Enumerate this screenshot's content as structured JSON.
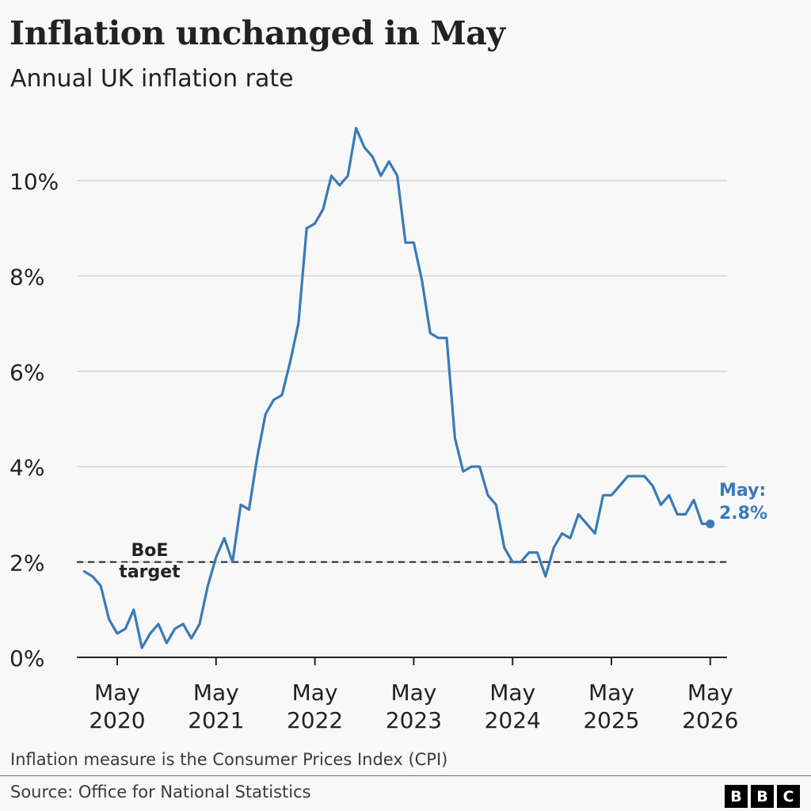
{
  "title": "Inflation unchanged in May",
  "subtitle": "Annual UK inflation rate",
  "note": "Inflation measure is the Consumer Prices Index (CPI)",
  "source": "Source: Office for National Statistics",
  "logo": [
    "B",
    "B",
    "C"
  ],
  "colors": {
    "line": "#3a7ab8",
    "gridline": "#d3d3d3",
    "axis": "#222222",
    "text": "#222222",
    "background": "#f8f8f8"
  },
  "chart_data": {
    "type": "line",
    "title": "Inflation unchanged in May",
    "subtitle": "Annual UK inflation rate",
    "xlabel": "",
    "ylabel": "",
    "ylim": [
      0,
      11.5
    ],
    "grid": true,
    "y_ticks": [
      0,
      2,
      4,
      6,
      8,
      10
    ],
    "y_tick_labels": [
      "0%",
      "2%",
      "4%",
      "6%",
      "8%",
      "10%"
    ],
    "x_ticks": [
      {
        "date": "2020-05",
        "line1": "May",
        "line2": "2020"
      },
      {
        "date": "2021-05",
        "line1": "May",
        "line2": "2021"
      },
      {
        "date": "2022-05",
        "line1": "May",
        "line2": "2022"
      },
      {
        "date": "2023-05",
        "line1": "May",
        "line2": "2023"
      },
      {
        "date": "2024-05",
        "line1": "May",
        "line2": "2024"
      },
      {
        "date": "2025-05",
        "line1": "May",
        "line2": "2025"
      },
      {
        "date": "2026-05",
        "line1": "May",
        "line2": "2026"
      }
    ],
    "series": [
      {
        "start": "2020-01",
        "frequency": "monthly",
        "values": [
          1.8,
          1.7,
          1.5,
          0.8,
          0.5,
          0.6,
          1.0,
          0.2,
          0.5,
          0.7,
          0.3,
          0.6,
          0.7,
          0.4,
          0.7,
          1.5,
          2.1,
          2.5,
          2.0,
          3.2,
          3.1,
          4.2,
          5.1,
          5.4,
          5.5,
          6.2,
          7.0,
          9.0,
          9.1,
          9.4,
          10.1,
          9.9,
          10.1,
          11.1,
          10.7,
          10.5,
          10.1,
          10.4,
          10.1,
          8.7,
          8.7,
          7.9,
          6.8,
          6.7,
          6.7,
          4.6,
          3.9,
          4.0,
          4.0,
          3.4,
          3.2,
          2.3,
          2.0,
          2.0,
          2.2,
          2.2,
          1.7,
          2.3,
          2.6,
          2.5,
          3.0,
          2.8,
          2.6,
          3.4,
          3.4,
          3.6,
          3.8,
          3.8,
          3.8,
          3.6,
          3.2,
          3.4,
          3.0,
          3.0,
          3.3,
          2.8,
          2.8
        ]
      }
    ],
    "reference_line": {
      "value": 2,
      "label_line1": "BoE",
      "label_line2": "target"
    },
    "annotation": {
      "date": "2026-05",
      "value": 2.8,
      "label_line1": "May:",
      "label_line2": "2.8%"
    }
  }
}
